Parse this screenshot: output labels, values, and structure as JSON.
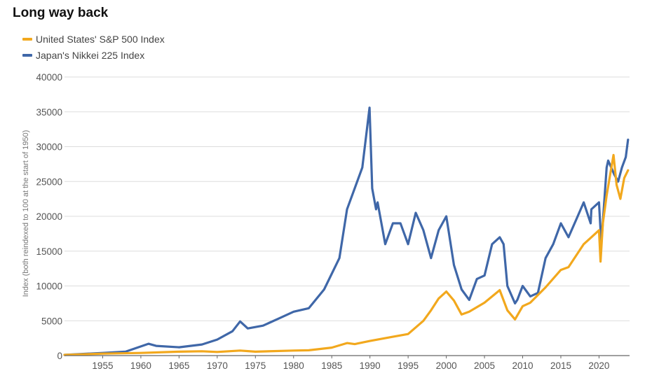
{
  "chart_data": {
    "type": "line",
    "title": "Long way back",
    "xlabel": "",
    "ylabel": "Index (both reindexed to 100 at the start of 1950)",
    "xlim": [
      1950,
      2024
    ],
    "ylim": [
      0,
      40000
    ],
    "y_ticks": [
      "0",
      "5000",
      "10000",
      "15000",
      "20000",
      "25000",
      "30000",
      "35000",
      "40000"
    ],
    "x_ticks": [
      "1955",
      "1960",
      "1965",
      "1970",
      "1975",
      "1980",
      "1985",
      "1990",
      "1995",
      "2000",
      "2005",
      "2010",
      "2015",
      "2020"
    ],
    "grid": true,
    "legend_position": "top-left",
    "series": [
      {
        "name": "United States' S&P 500 Index",
        "color": "#F2A81D",
        "x": [
          1950,
          1955,
          1960,
          1965,
          1968,
          1970,
          1973,
          1975,
          1980,
          1982,
          1985,
          1987,
          1988,
          1990,
          1993,
          1995,
          1997,
          1998,
          1999,
          2000,
          2001,
          2002,
          2003,
          2005,
          2007,
          2008,
          2009,
          2010,
          2011,
          2013,
          2015,
          2016,
          2018,
          2019,
          2020.0,
          2020.2,
          2020.5,
          2021,
          2021.9,
          2022.3,
          2022.8,
          2023.3,
          2023.8
        ],
        "y": [
          100,
          280,
          380,
          560,
          620,
          520,
          720,
          560,
          720,
          760,
          1150,
          1800,
          1650,
          2100,
          2700,
          3100,
          5000,
          6500,
          8200,
          9200,
          7900,
          5900,
          6300,
          7600,
          9400,
          6500,
          5200,
          7100,
          7600,
          9800,
          12300,
          12700,
          16000,
          17000,
          18000,
          13500,
          19000,
          23000,
          28800,
          24500,
          22500,
          25500,
          26600
        ]
      },
      {
        "name": "Japan's Nikkei 225 Index",
        "color": "#3F67A8",
        "x": [
          1950,
          1955,
          1958,
          1961,
          1962,
          1965,
          1968,
          1970,
          1972,
          1973,
          1974,
          1975,
          1976,
          1978,
          1980,
          1982,
          1984,
          1986,
          1987,
          1988,
          1989,
          1989.95,
          1990.3,
          1990.8,
          1991,
          1992,
          1993,
          1994,
          1995,
          1996,
          1997,
          1998,
          1999,
          2000,
          2001,
          2002,
          2003,
          2004,
          2005,
          2006,
          2007,
          2007.5,
          2008,
          2009,
          2009.3,
          2010,
          2011,
          2012,
          2013,
          2014,
          2015,
          2016,
          2017,
          2018,
          2018.9,
          2019,
          2020,
          2020.3,
          2021,
          2021.2,
          2022,
          2022.5,
          2023,
          2023.5,
          2023.8
        ],
        "y": [
          100,
          380,
          560,
          1700,
          1400,
          1200,
          1600,
          2300,
          3500,
          4900,
          3900,
          4100,
          4300,
          5300,
          6300,
          6800,
          9500,
          14000,
          21000,
          24000,
          27000,
          35600,
          24000,
          21000,
          22000,
          16000,
          19000,
          19000,
          16000,
          20500,
          18000,
          14000,
          18000,
          20000,
          13000,
          9500,
          8000,
          11000,
          11500,
          16000,
          17000,
          16000,
          10000,
          7500,
          8000,
          10000,
          8500,
          9000,
          14000,
          16000,
          19000,
          17000,
          19500,
          22000,
          19000,
          21000,
          22000,
          16000,
          27000,
          28000,
          26000,
          25000,
          27000,
          28500,
          31000
        ]
      }
    ]
  }
}
